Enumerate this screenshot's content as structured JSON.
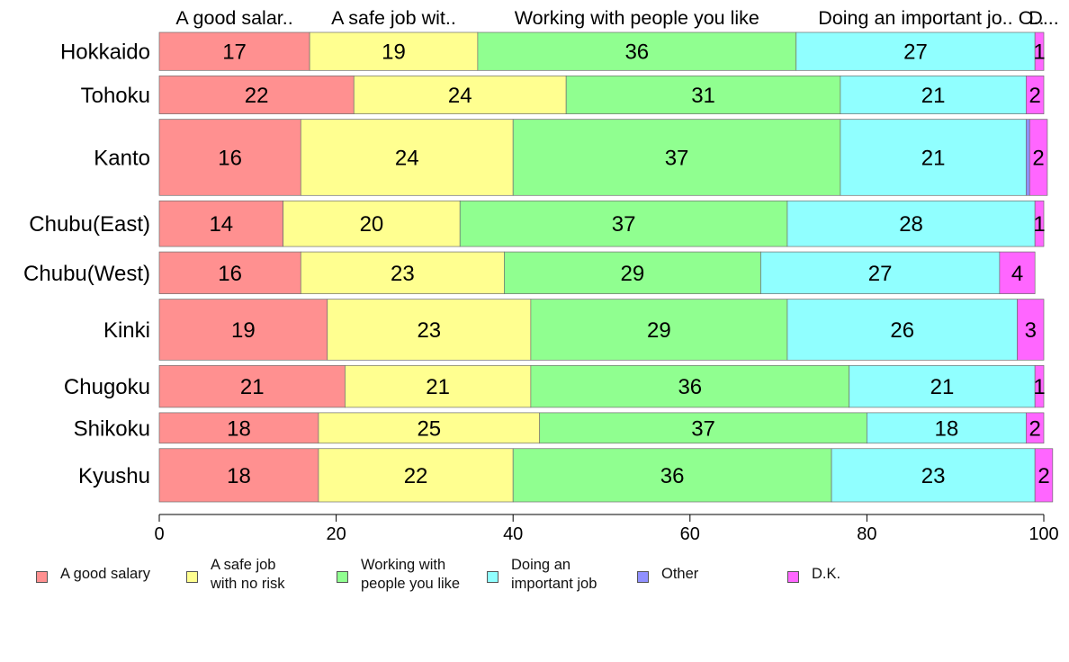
{
  "chart_data": {
    "type": "bar",
    "orientation": "horizontal",
    "stacked": true,
    "categories": [
      "Hokkaido",
      "Tohoku",
      "Kanto",
      "Chubu(East)",
      "Chubu(West)",
      "Kinki",
      "Chugoku",
      "Shikoku",
      "Kyushu"
    ],
    "series": [
      {
        "name": "A good salary",
        "top_label": "A good salar..",
        "color": "#ff9090",
        "values": [
          17,
          22,
          16,
          14,
          16,
          19,
          21,
          18,
          18
        ],
        "labels": [
          "17",
          "22",
          "16",
          "14",
          "16",
          "19",
          "21",
          "18",
          "18"
        ]
      },
      {
        "name": "A safe job with no risk",
        "top_label": "A safe job wit..",
        "color": "#ffff90",
        "values": [
          19,
          24,
          24,
          20,
          23,
          23,
          21,
          25,
          22
        ],
        "labels": [
          "19",
          "24",
          "24",
          "20",
          "23",
          "23",
          "21",
          "25",
          "22"
        ]
      },
      {
        "name": "Working with people you like",
        "top_label": "Working with people you like",
        "color": "#90ff90",
        "values": [
          36,
          31,
          37,
          37,
          29,
          29,
          36,
          37,
          36
        ],
        "labels": [
          "36",
          "31",
          "37",
          "37",
          "29",
          "29",
          "36",
          "37",
          "36"
        ]
      },
      {
        "name": "Doing an important job",
        "top_label": "Doing an important jo..",
        "color": "#90ffff",
        "values": [
          27,
          21,
          21,
          28,
          27,
          26,
          21,
          18,
          23
        ],
        "labels": [
          "27",
          "21",
          "21",
          "28",
          "27",
          "26",
          "21",
          "18",
          "23"
        ]
      },
      {
        "name": "Other",
        "top_label": "O..",
        "color": "#9090ff",
        "values": [
          0,
          0,
          0.4,
          0,
          0,
          0,
          0,
          0,
          0
        ],
        "labels": [
          "",
          "",
          "",
          "",
          "",
          "",
          "",
          "",
          ""
        ]
      },
      {
        "name": "D.K.",
        "top_label": "D...",
        "color": "#ff66ff",
        "values": [
          1,
          2,
          2,
          1,
          4,
          3,
          1,
          2,
          2
        ],
        "labels": [
          "1",
          "2",
          "2",
          "1",
          "4",
          "3",
          "1",
          "2",
          "2"
        ]
      }
    ],
    "bar_weights": [
      1,
      1,
      2,
      1.2,
      1.1,
      1.6,
      1.1,
      0.8,
      1.4
    ],
    "xlim": [
      0,
      100
    ],
    "xticks": [
      0,
      20,
      40,
      60,
      80,
      100
    ],
    "xtick_labels": [
      "0",
      "20",
      "40",
      "60",
      "80",
      "100"
    ],
    "legend_labels": [
      "A good salary",
      "A safe job\nwith no risk",
      "Working with\npeople you like",
      "Doing an\nimportant job",
      "Other",
      "D.K."
    ],
    "legend_position": "bottom",
    "grid": false,
    "title": "",
    "xlabel": "",
    "ylabel": ""
  }
}
